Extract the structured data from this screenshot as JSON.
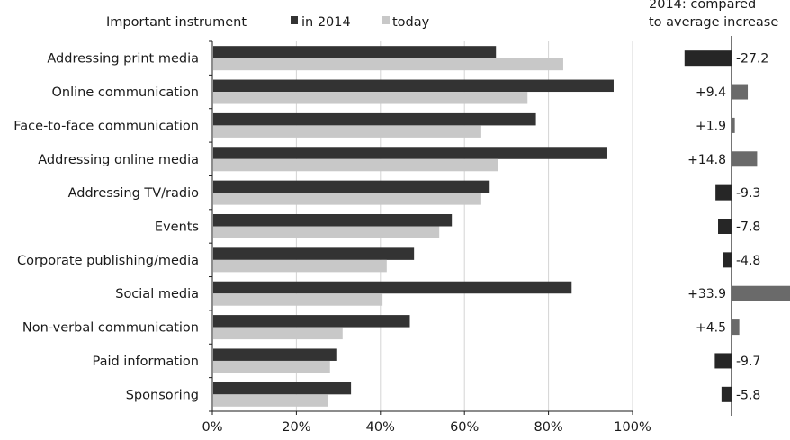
{
  "colors": {
    "in_2014": "#333333",
    "today": "#c8c8c8",
    "delta_negative": "#262626",
    "delta_positive": "#6a6a6a",
    "grid": "#d4d4d4",
    "axis": "#1a1a1a"
  },
  "chart_data": [
    {
      "type": "bar",
      "orientation": "horizontal",
      "title": "",
      "legend": {
        "heading": "Important instrument",
        "placement": "top",
        "entries": [
          "in 2014",
          "today"
        ]
      },
      "categories": [
        "Addressing print media",
        "Online communication",
        "Face-to-face communication",
        "Addressing online media",
        "Addressing TV/radio",
        "Events",
        "Corporate publishing/media",
        "Social media",
        "Non-verbal communication",
        "Paid information",
        "Sponsoring"
      ],
      "series": [
        {
          "name": "in 2014",
          "values": [
            67.5,
            95.5,
            77,
            94,
            66,
            57,
            48,
            85.5,
            47,
            29.5,
            33
          ]
        },
        {
          "name": "today",
          "values": [
            83.5,
            75,
            64,
            68,
            64,
            54,
            41.5,
            40.5,
            31,
            28,
            27.5
          ]
        }
      ],
      "xlim": [
        0,
        100
      ],
      "x_ticks": [
        "0%",
        "20%",
        "40%",
        "60%",
        "80%",
        "100%"
      ],
      "x_tick_values": [
        0,
        20,
        40,
        60,
        80,
        100
      ],
      "grid": true
    },
    {
      "type": "bar",
      "orientation": "horizontal",
      "title": "2014: compared to average increase",
      "title_lines": [
        "2014: compared",
        "to average increase"
      ],
      "categories": [
        "Addressing print media",
        "Online communication",
        "Face-to-face communication",
        "Addressing online media",
        "Addressing TV/radio",
        "Events",
        "Corporate publishing/media",
        "Social media",
        "Non-verbal communication",
        "Paid information",
        "Sponsoring"
      ],
      "values": [
        -27.2,
        9.4,
        1.9,
        14.8,
        -9.3,
        -7.8,
        -4.8,
        33.9,
        4.5,
        -9.7,
        -5.8
      ],
      "value_labels": [
        "-27.2",
        "+9.4",
        "+1.9",
        "+14.8",
        "-9.3",
        "-7.8",
        "-4.8",
        "+33.9",
        "+4.5",
        "-9.7",
        "-5.8"
      ],
      "xlim": [
        -28,
        34
      ]
    }
  ]
}
